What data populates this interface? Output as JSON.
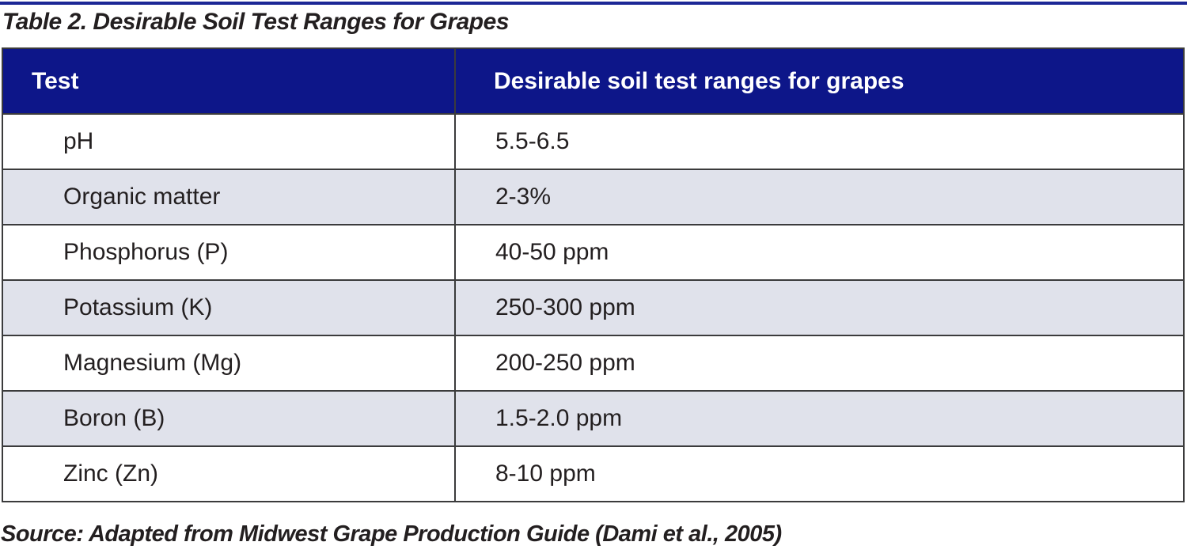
{
  "page": {
    "title": "Table 2. Desirable Soil Test Ranges for Grapes",
    "source": "Source: Adapted from Midwest Grape Production Guide (Dami et al., 2005)"
  },
  "colors": {
    "header_bg": "#0d1689",
    "header_text": "#ffffff",
    "alt_row_bg": "#e0e2eb",
    "border": "#3b3b3c",
    "top_rule": "#1c2796",
    "body_text": "#231f20"
  },
  "chart_data": {
    "type": "table",
    "title": "Table 2. Desirable Soil Test Ranges for Grapes",
    "columns": [
      "Test",
      "Desirable soil test ranges for grapes"
    ],
    "rows": [
      {
        "test": "pH",
        "range": "5.5-6.5"
      },
      {
        "test": "Organic matter",
        "range": "2-3%"
      },
      {
        "test": "Phosphorus (P)",
        "range": "40-50 ppm"
      },
      {
        "test": "Potassium (K)",
        "range": "250-300 ppm"
      },
      {
        "test": "Magnesium (Mg)",
        "range": "200-250 ppm"
      },
      {
        "test": "Boron (B)",
        "range": "1.5-2.0 ppm"
      },
      {
        "test": "Zinc (Zn)",
        "range": "8-10 ppm"
      }
    ],
    "source_note": "Source: Adapted from Midwest Grape Production Guide (Dami et al., 2005)"
  },
  "table": {
    "headers": {
      "test": "Test",
      "range": "Desirable soil test ranges for grapes"
    }
  }
}
